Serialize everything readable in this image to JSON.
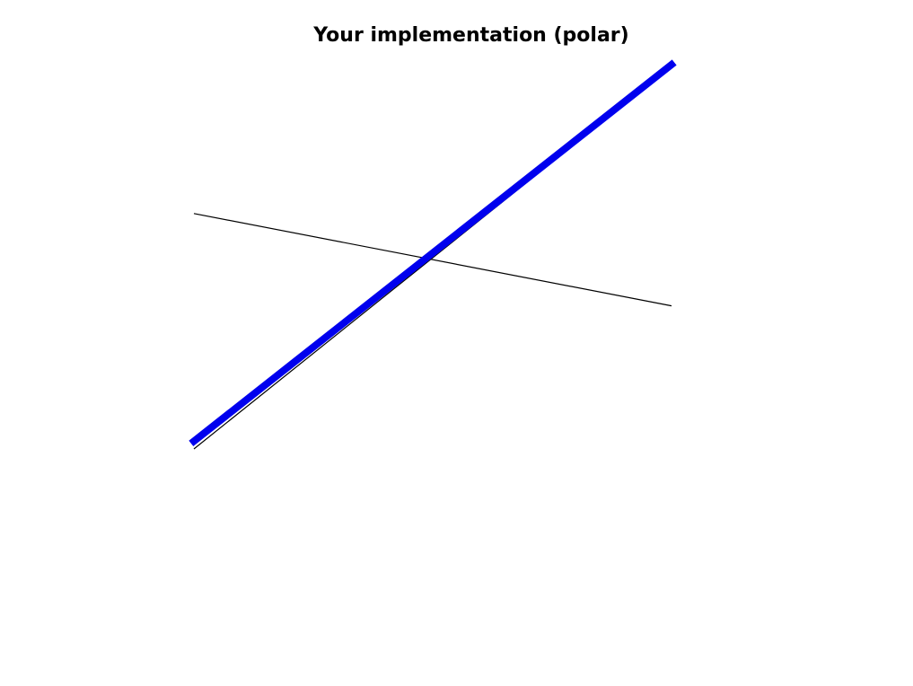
{
  "chart_data": {
    "type": "line",
    "title": "Your implementation (polar)",
    "xlabel": "",
    "ylabel": "",
    "grid": false,
    "axes_visible": false,
    "series": [
      {
        "color": "#000000",
        "width": "thin",
        "x": [
          0,
          1
        ],
        "y": [
          0.6125,
          0.3725
        ]
      },
      {
        "color": "#000000",
        "width": "thin",
        "x": [
          0,
          1
        ],
        "y": [
          0.0,
          0.995
        ]
      },
      {
        "color": "#0000ee",
        "width": "thick",
        "x": [
          0,
          1
        ],
        "y": [
          0.02,
          1.0
        ]
      }
    ],
    "xlim": [
      0,
      1
    ],
    "ylim": [
      0,
      1
    ]
  }
}
